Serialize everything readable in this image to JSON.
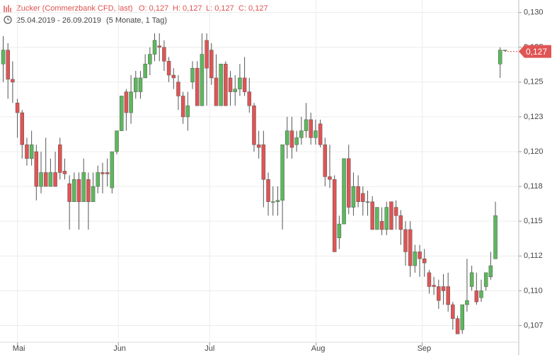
{
  "chart_data": {
    "type": "candlestick",
    "title": "Zucker (Commerzbank CFD, last)",
    "stats": [
      "O: 0,127",
      "H: 0,127",
      "L: 0,127",
      "C: 0,127"
    ],
    "date_range": "25.04.2019 - 26.09.2019",
    "period": "(5 Monate, 1 Tag)",
    "up_color": "#5cb85c",
    "down_color": "#e05454",
    "grid": true,
    "ylim": [
      0.1063,
      0.1309
    ],
    "yticks": [
      {
        "value": 0.13,
        "label": "0,130"
      },
      {
        "value": 0.1275,
        "label": "0,128"
      },
      {
        "value": 0.125,
        "label": "0,125"
      },
      {
        "value": 0.1225,
        "label": "0,123"
      },
      {
        "value": 0.12,
        "label": "0,120"
      },
      {
        "value": 0.1175,
        "label": "0,118"
      },
      {
        "value": 0.115,
        "label": "0,115"
      },
      {
        "value": 0.1125,
        "label": "0,112"
      },
      {
        "value": 0.11,
        "label": "0,110"
      },
      {
        "value": 0.1075,
        "label": "0,107"
      }
    ],
    "xlim": [
      -0.6,
      109
    ],
    "xticks": [
      {
        "value": 3.1,
        "label": "Mai"
      },
      {
        "value": 24.4,
        "label": "Jun"
      },
      {
        "value": 43.7,
        "label": "Jul"
      },
      {
        "value": 66.2,
        "label": "Aug"
      },
      {
        "value": 88.6,
        "label": "Sep"
      }
    ],
    "last_price": {
      "value": 0.1272,
      "label": "0,127"
    },
    "open": [
      0.1263,
      0.1273,
      0.1252,
      0.1235,
      0.1228,
      0.1205,
      0.1195,
      0.12,
      0.1175,
      0.1185,
      0.1175,
      0.1185,
      0.1205,
      0.1186,
      0.1177,
      0.1164,
      0.118,
      0.1164,
      0.118,
      0.1164,
      0.1175,
      0.1185,
      0.1185,
      0.1174,
      0.12,
      0.1215,
      0.1243,
      0.1228,
      0.1243,
      0.1243,
      0.1253,
      0.1263,
      0.127,
      0.1276,
      0.1275,
      0.1265,
      0.1255,
      0.125,
      0.124,
      0.1225,
      0.125,
      0.126,
      0.1233,
      0.128,
      0.1273,
      0.1253,
      0.1233,
      0.1263,
      0.1253,
      0.1243,
      0.1245,
      0.1253,
      0.1243,
      0.1233,
      0.1205,
      0.1205,
      0.118,
      0.1164,
      0.1164,
      0.1165,
      0.1205,
      0.1215,
      0.1205,
      0.121,
      0.1215,
      0.1223,
      0.121,
      0.122,
      0.1205,
      0.1182,
      0.118,
      0.1138,
      0.1148,
      0.1195,
      0.116,
      0.1175,
      0.117,
      0.1164,
      0.1164,
      0.1144,
      0.115,
      0.1144,
      0.1164,
      0.116,
      0.1154,
      0.1144,
      0.1144,
      0.1118,
      0.1128,
      0.1123,
      0.1113,
      0.1104,
      0.1103,
      0.1103,
      0.1103,
      0.109,
      0.108,
      0.1072,
      0.109,
      0.1103,
      0.11,
      0.1095,
      0.1103,
      0.111,
      0.1123,
      0.1263,
      0.1273
    ],
    "high": [
      0.1283,
      0.1278,
      0.1265,
      0.1238,
      0.123,
      0.121,
      0.1215,
      0.1205,
      0.12,
      0.121,
      0.1195,
      0.12,
      0.121,
      0.1195,
      0.1183,
      0.1185,
      0.1185,
      0.1195,
      0.1185,
      0.1185,
      0.119,
      0.1192,
      0.1195,
      0.12,
      0.1215,
      0.124,
      0.1245,
      0.1255,
      0.1258,
      0.1258,
      0.127,
      0.1275,
      0.1285,
      0.1285,
      0.128,
      0.1268,
      0.126,
      0.1255,
      0.1243,
      0.1243,
      0.1265,
      0.1265,
      0.1285,
      0.1285,
      0.1278,
      0.127,
      0.1263,
      0.1265,
      0.1258,
      0.1255,
      0.1263,
      0.1268,
      0.1253,
      0.1235,
      0.1215,
      0.1215,
      0.1185,
      0.1175,
      0.1175,
      0.1205,
      0.1225,
      0.1225,
      0.1215,
      0.1225,
      0.1235,
      0.1228,
      0.1223,
      0.1223,
      0.121,
      0.1205,
      0.1183,
      0.1154,
      0.1195,
      0.1205,
      0.1185,
      0.1183,
      0.1175,
      0.1172,
      0.1168,
      0.116,
      0.116,
      0.1164,
      0.1164,
      0.1165,
      0.1158,
      0.115,
      0.115,
      0.1133,
      0.1133,
      0.113,
      0.1115,
      0.111,
      0.1108,
      0.1112,
      0.1113,
      0.1092,
      0.1082,
      0.109,
      0.1123,
      0.1118,
      0.1113,
      0.1108,
      0.1113,
      0.1128,
      0.1164,
      0.1275,
      0.1273
    ],
    "low": [
      0.125,
      0.1238,
      0.1235,
      0.121,
      0.1195,
      0.119,
      0.119,
      0.1165,
      0.117,
      0.1175,
      0.1175,
      0.1175,
      0.118,
      0.118,
      0.1144,
      0.1164,
      0.1144,
      0.1164,
      0.1144,
      0.1164,
      0.117,
      0.117,
      0.1175,
      0.117,
      0.1198,
      0.1215,
      0.1215,
      0.122,
      0.1238,
      0.1238,
      0.1253,
      0.1255,
      0.1265,
      0.1265,
      0.1258,
      0.125,
      0.1245,
      0.123,
      0.122,
      0.1215,
      0.1245,
      0.1233,
      0.1233,
      0.1233,
      0.1248,
      0.1233,
      0.1233,
      0.1233,
      0.1233,
      0.1233,
      0.124,
      0.124,
      0.1228,
      0.12,
      0.1195,
      0.116,
      0.1154,
      0.1154,
      0.1154,
      0.1144,
      0.1195,
      0.1195,
      0.12,
      0.1205,
      0.121,
      0.1205,
      0.1205,
      0.1203,
      0.1175,
      0.1174,
      0.1128,
      0.113,
      0.1148,
      0.1155,
      0.1154,
      0.116,
      0.1154,
      0.1154,
      0.1144,
      0.1144,
      0.114,
      0.114,
      0.1144,
      0.1144,
      0.1133,
      0.1118,
      0.111,
      0.1113,
      0.111,
      0.111,
      0.1098,
      0.1097,
      0.1087,
      0.109,
      0.1085,
      0.1072,
      0.1069,
      0.1069,
      0.1085,
      0.11,
      0.109,
      0.1092,
      0.11,
      0.1108,
      0.1123,
      0.1253,
      0.1273
    ],
    "close": [
      0.1273,
      0.1252,
      0.125,
      0.1228,
      0.1205,
      0.1195,
      0.1205,
      0.1175,
      0.1185,
      0.1175,
      0.1185,
      0.1175,
      0.1185,
      0.1184,
      0.1164,
      0.118,
      0.1164,
      0.1185,
      0.1164,
      0.1175,
      0.1185,
      0.1184,
      0.1184,
      0.12,
      0.1215,
      0.124,
      0.1228,
      0.1243,
      0.1253,
      0.1253,
      0.1263,
      0.127,
      0.128,
      0.1275,
      0.1265,
      0.1255,
      0.1253,
      0.124,
      0.1225,
      0.1233,
      0.126,
      0.1233,
      0.127,
      0.126,
      0.1253,
      0.1233,
      0.1263,
      0.1233,
      0.1243,
      0.1245,
      0.1253,
      0.1243,
      0.1233,
      0.1205,
      0.1203,
      0.118,
      0.1164,
      0.1164,
      0.1165,
      0.1205,
      0.1215,
      0.1203,
      0.121,
      0.1215,
      0.1223,
      0.121,
      0.1215,
      0.1205,
      0.1182,
      0.118,
      0.1128,
      0.1148,
      0.1195,
      0.116,
      0.1175,
      0.1164,
      0.1164,
      0.1164,
      0.1144,
      0.116,
      0.1144,
      0.116,
      0.1144,
      0.1154,
      0.1144,
      0.1128,
      0.1118,
      0.1128,
      0.1123,
      0.112,
      0.1103,
      0.1103,
      0.1093,
      0.11,
      0.109,
      0.108,
      0.1069,
      0.109,
      0.1093,
      0.1113,
      0.1092,
      0.11,
      0.1113,
      0.1118,
      0.1154,
      0.1273,
      0.1273
    ]
  }
}
